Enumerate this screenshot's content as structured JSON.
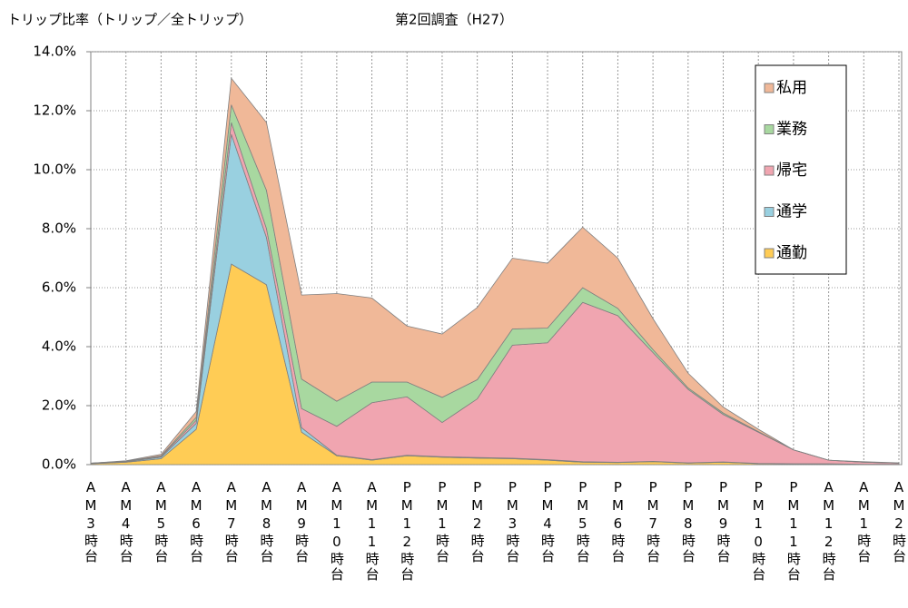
{
  "chart_data": {
    "type": "stacked_area",
    "title": "第2回調査（H27）",
    "y_label": "トリップ比率（トリップ／全トリップ）",
    "categories": [
      "AM3時台",
      "AM4時台",
      "AM5時台",
      "AM6時台",
      "AM7時台",
      "AM8時台",
      "AM9時台",
      "AM10時台",
      "AM11時台",
      "PM12時台",
      "PM1時台",
      "PM2時台",
      "PM3時台",
      "PM4時台",
      "PM5時台",
      "PM6時台",
      "PM7時台",
      "PM8時台",
      "PM9時台",
      "PM10時台",
      "PM11時台",
      "AM12時台",
      "AM1時台",
      "AM2時台"
    ],
    "series": [
      {
        "name": "通勤",
        "color": "#ffcc55",
        "values": [
          0.03,
          0.08,
          0.2,
          1.2,
          6.8,
          6.1,
          1.1,
          0.3,
          0.15,
          0.3,
          0.25,
          0.22,
          0.2,
          0.15,
          0.08,
          0.07,
          0.1,
          0.05,
          0.08,
          0.03,
          0.02,
          0.02,
          0.01,
          0.01
        ]
      },
      {
        "name": "通学",
        "color": "#99d0e0",
        "values": [
          0.01,
          0.02,
          0.05,
          0.2,
          4.4,
          1.6,
          0.15,
          0.02,
          0.02,
          0.02,
          0.02,
          0.02,
          0.02,
          0.02,
          0.02,
          0.01,
          0.01,
          0.01,
          0.01,
          0.01,
          0.01,
          0.01,
          0,
          0
        ]
      },
      {
        "name": "帰宅",
        "color": "#f0a5b0",
        "values": [
          0.01,
          0.01,
          0.03,
          0.1,
          0.4,
          0.3,
          0.65,
          0.98,
          1.93,
          1.98,
          1.16,
          1.99,
          3.83,
          3.96,
          5.4,
          4.97,
          3.69,
          2.49,
          1.61,
          1.06,
          0.47,
          0.12,
          0.07,
          0.04
        ]
      },
      {
        "name": "業務",
        "color": "#a8d8a0",
        "values": [
          0,
          0.01,
          0.02,
          0.1,
          0.6,
          1.3,
          1.0,
          0.85,
          0.7,
          0.5,
          0.85,
          0.65,
          0.55,
          0.5,
          0.5,
          0.25,
          0.1,
          0.05,
          0.05,
          0.02,
          0,
          0,
          0,
          0
        ]
      },
      {
        "name": "私用",
        "color": "#f0b898",
        "values": [
          0,
          0.01,
          0.05,
          0.2,
          0.9,
          2.3,
          2.85,
          3.65,
          2.85,
          1.9,
          2.15,
          2.45,
          2.4,
          2.2,
          2.05,
          1.7,
          1.05,
          0.5,
          0.2,
          0.08,
          0,
          0,
          0.02,
          0.01
        ]
      }
    ],
    "ylim": [
      0,
      14
    ],
    "yticks": [
      {
        "value": 0,
        "label": "0.0%"
      },
      {
        "value": 2,
        "label": "2.0%"
      },
      {
        "value": 4,
        "label": "4.0%"
      },
      {
        "value": 6,
        "label": "6.0%"
      },
      {
        "value": 8,
        "label": "8.0%"
      },
      {
        "value": 10,
        "label": "10.0%"
      },
      {
        "value": 12,
        "label": "12.0%"
      },
      {
        "value": 14,
        "label": "14.0%"
      }
    ],
    "grid": true,
    "legend": "upper right"
  }
}
